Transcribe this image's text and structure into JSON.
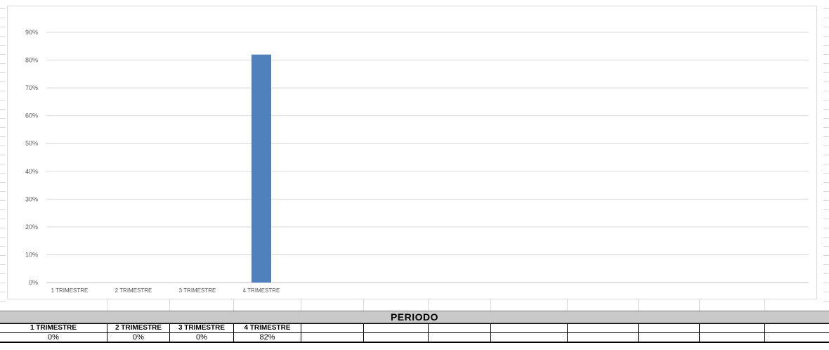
{
  "chart_data": {
    "type": "bar",
    "categories": [
      "1 TRIMESTRE",
      "2 TRIMESTRE",
      "3 TRIMESTRE",
      "4 TRIMESTRE"
    ],
    "series": [
      {
        "values": [
          0,
          0,
          0,
          82
        ]
      }
    ],
    "ylim": [
      0,
      90
    ],
    "yticks": [
      0,
      10,
      20,
      30,
      40,
      50,
      60,
      70,
      80,
      90
    ],
    "ytick_labels": [
      "0%",
      "10%",
      "20%",
      "30%",
      "40%",
      "50%",
      "60%",
      "70%",
      "80%",
      "90%"
    ],
    "grid": true,
    "bar_color": "#4f81bd"
  },
  "table": {
    "title": "PERIODO",
    "headers": [
      "1 TRIMESTRE",
      "2 TRIMESTRE",
      "3 TRIMESTRE",
      "4 TRIMESTRE"
    ],
    "values": [
      "0%",
      "0%",
      "0%",
      "82%"
    ]
  }
}
